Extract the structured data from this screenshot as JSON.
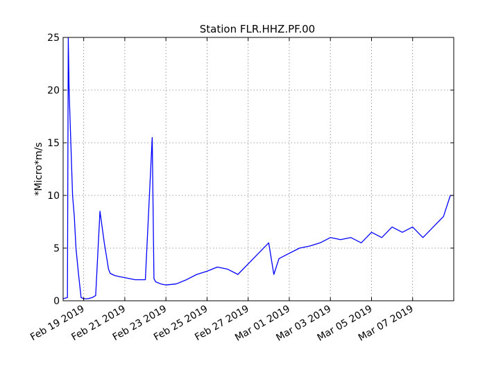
{
  "chart_data": {
    "type": "line",
    "title": "Station FLR.HHZ.PF.00",
    "xlabel": "",
    "ylabel": "*Micro*m/s",
    "x_tick_labels": [
      "Feb 19 2019",
      "Feb 21 2019",
      "Feb 23 2019",
      "Feb 25 2019",
      "Feb 27 2019",
      "Mar 01 2019",
      "Mar 03 2019",
      "Mar 05 2019",
      "Mar 07 2019"
    ],
    "x_tick_days": [
      0,
      2,
      4,
      6,
      8,
      10,
      12,
      14,
      16
    ],
    "xlim": [
      "2019-02-18",
      "2019-03-09"
    ],
    "ylim": [
      0,
      25
    ],
    "y_ticks": [
      0,
      5,
      10,
      15,
      20,
      25
    ],
    "grid": true,
    "line_color": "#0000ff",
    "series": [
      {
        "x": [
          "2019-02-18 00:00",
          "2019-02-18 05:00",
          "2019-02-18 06:00",
          "2019-02-18 07:00",
          "2019-02-18 09:00",
          "2019-02-18 11:00",
          "2019-02-18 13:00",
          "2019-02-18 15:00",
          "2019-02-18 18:00",
          "2019-02-18 21:00",
          "2019-02-19 00:00",
          "2019-02-19 05:00",
          "2019-02-19 10:00",
          "2019-02-19 14:00",
          "2019-02-19 19:00",
          "2019-02-20 00:00",
          "2019-02-20 03:00",
          "2019-02-20 05:00",
          "2019-02-20 07:00",
          "2019-02-20 12:00",
          "2019-02-20 17:00",
          "2019-02-21 00:00",
          "2019-02-21 12:00",
          "2019-02-22 00:00",
          "2019-02-22 08:00",
          "2019-02-22 10:00",
          "2019-02-22 12:00",
          "2019-02-22 18:00",
          "2019-02-23 00:00",
          "2019-02-23 12:00",
          "2019-02-24 00:00",
          "2019-02-24 12:00",
          "2019-02-25 00:00",
          "2019-02-25 12:00",
          "2019-02-26 00:00",
          "2019-02-26 12:00",
          "2019-02-27 00:00",
          "2019-02-27 12:00",
          "2019-02-28 00:00",
          "2019-02-28 06:00",
          "2019-02-28 12:00",
          "2019-03-01 00:00",
          "2019-03-01 12:00",
          "2019-03-02 00:00",
          "2019-03-02 12:00",
          "2019-03-03 00:00",
          "2019-03-03 12:00",
          "2019-03-04 00:00",
          "2019-03-04 12:00",
          "2019-03-05 00:00",
          "2019-03-05 12:00",
          "2019-03-06 00:00",
          "2019-03-06 12:00",
          "2019-03-07 00:00",
          "2019-03-07 12:00",
          "2019-03-08 00:00",
          "2019-03-08 12:00",
          "2019-03-08 20:00",
          "2019-03-09 00:00"
        ],
        "values": [
          0.2,
          0.3,
          25,
          20,
          15,
          10,
          8,
          5,
          2.5,
          0.3,
          0.2,
          0.2,
          0.3,
          0.5,
          8.5,
          5.5,
          4,
          3,
          2.6,
          2.4,
          2.3,
          2.2,
          2,
          2,
          15.5,
          2.1,
          1.8,
          1.6,
          1.5,
          1.6,
          2,
          2.5,
          2.8,
          3.2,
          3,
          2.5,
          3.5,
          4.5,
          5.5,
          2.5,
          4,
          4.5,
          5,
          5.2,
          5.5,
          6,
          5.8,
          6,
          5.5,
          6.5,
          6,
          7,
          6.5,
          7,
          6,
          7,
          8,
          10,
          10
        ]
      }
    ]
  }
}
